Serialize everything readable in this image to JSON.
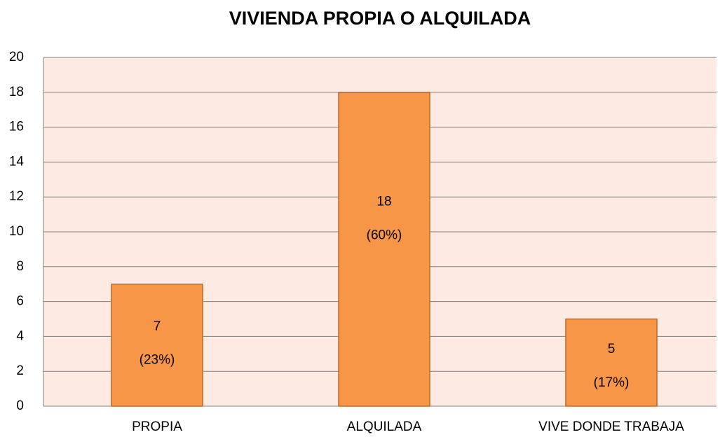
{
  "chart_data": {
    "type": "bar",
    "title": "VIVIENDA PROPIA O ALQUILADA",
    "categories": [
      "PROPIA",
      "ALQUILADA",
      "VIVE DONDE TRABAJA"
    ],
    "values": [
      7,
      18,
      5
    ],
    "percent_labels": [
      "(23%)",
      "(60%)",
      "(17%)"
    ],
    "color": "#f79646",
    "ylim": [
      0,
      20
    ],
    "yticks": [
      0,
      2,
      4,
      6,
      8,
      10,
      12,
      14,
      16,
      18,
      20
    ],
    "grid": true
  }
}
